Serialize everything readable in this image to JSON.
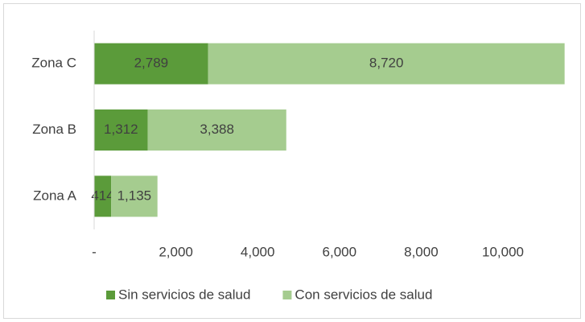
{
  "chart_data": {
    "type": "bar",
    "orientation": "horizontal",
    "stacked": true,
    "categories": [
      "Zona A",
      "Zona B",
      "Zona C"
    ],
    "series": [
      {
        "name": "Sin servicios de salud",
        "color": "#5b9b3a",
        "values": [
          414,
          1312,
          2789
        ],
        "value_labels": [
          "414",
          "1,312",
          "2,789"
        ]
      },
      {
        "name": "Con servicios de salud",
        "color": "#a5cc8f",
        "values": [
          1135,
          3388,
          8720
        ],
        "value_labels": [
          "1,135",
          "3,388",
          "8,720"
        ]
      }
    ],
    "xlim": [
      0,
      12000
    ],
    "xticks": [
      {
        "value": 0,
        "label": "-"
      },
      {
        "value": 2000,
        "label": "2,000"
      },
      {
        "value": 4000,
        "label": "4,000"
      },
      {
        "value": 6000,
        "label": "6,000"
      },
      {
        "value": 8000,
        "label": "8,000"
      },
      {
        "value": 10000,
        "label": "10,000"
      }
    ],
    "grid": false,
    "legend": "bottom"
  }
}
